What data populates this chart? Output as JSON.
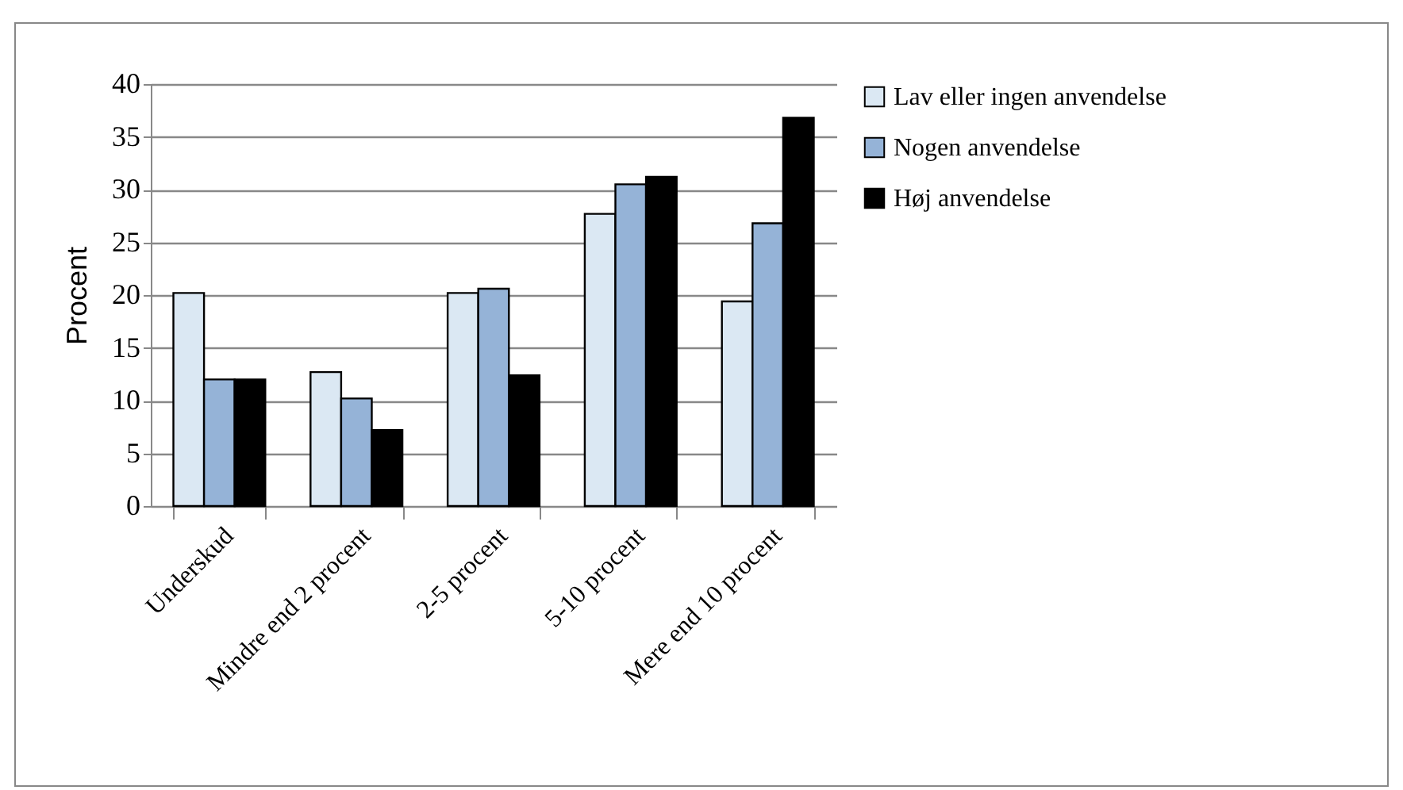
{
  "chart_data": {
    "type": "bar",
    "ylabel": "Procent",
    "categories": [
      "Underskud",
      "Mindre end 2 procent",
      "2-5 procent",
      "5-10 procent",
      "Mere end 10 procent"
    ],
    "series": [
      {
        "name": "Lav eller ingen anvendelse",
        "color": "#dbe8f3",
        "values": [
          20.2,
          12.7,
          20.2,
          27.7,
          19.4
        ]
      },
      {
        "name": "Nogen anvendelse",
        "color": "#95b3d7",
        "values": [
          12.0,
          10.2,
          20.6,
          30.5,
          26.8
        ]
      },
      {
        "name": "Høj anvendelse",
        "color": "#000000",
        "values": [
          12.0,
          7.2,
          12.4,
          31.2,
          36.8
        ]
      }
    ],
    "ylim": [
      0,
      40
    ],
    "yticks": [
      0,
      5,
      10,
      15,
      20,
      25,
      30,
      35,
      40
    ],
    "grid": "y",
    "legend": "right"
  }
}
